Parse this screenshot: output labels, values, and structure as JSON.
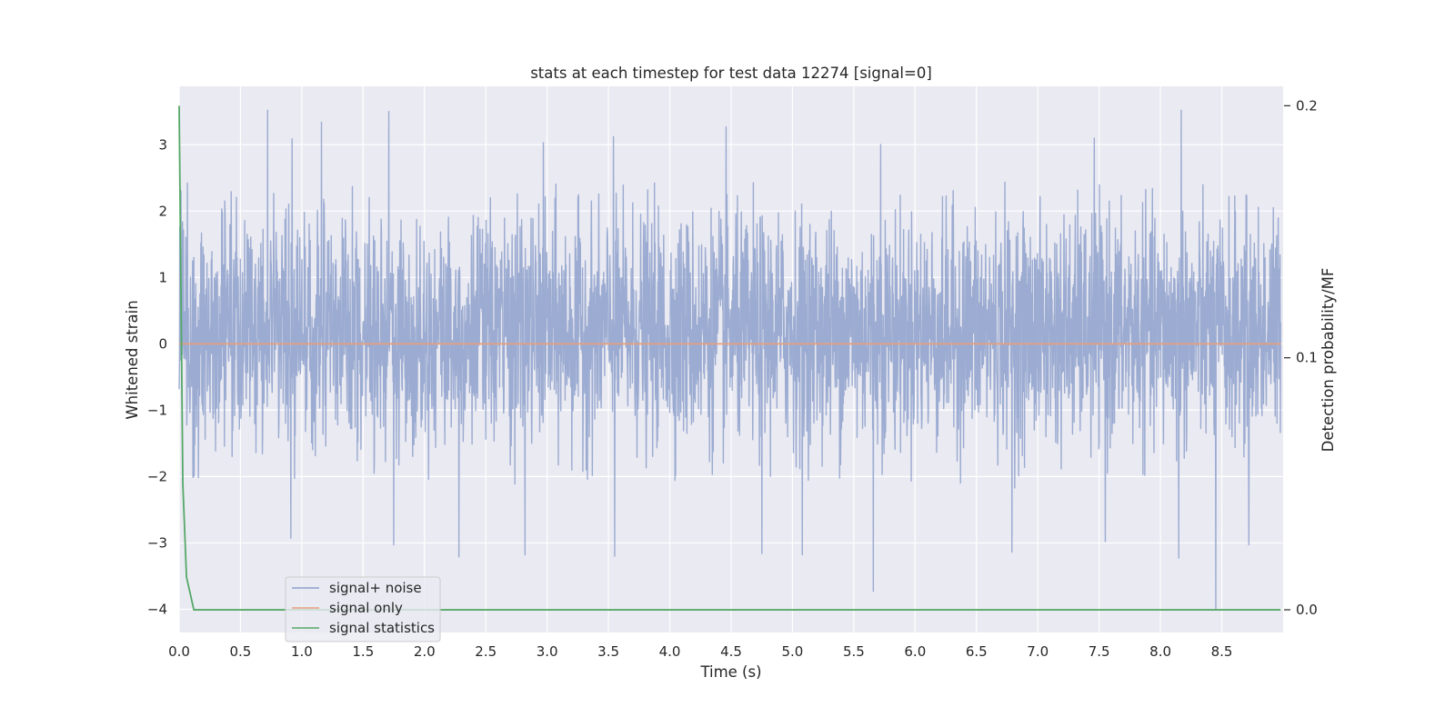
{
  "chart_data": {
    "type": "line",
    "title": "stats at each timestep for test data 12274 [signal=0]",
    "xlabel": "Time (s)",
    "ylabel": "Whitened strain",
    "y2label": "Detection probability/MF",
    "xlim": [
      0.0,
      9.0
    ],
    "ylim": [
      -4.35,
      3.88
    ],
    "y2lim": [
      -0.009,
      0.2077
    ],
    "x_ticks": [
      0.0,
      0.5,
      1.0,
      1.5,
      2.0,
      2.5,
      3.0,
      3.5,
      4.0,
      4.5,
      5.0,
      5.5,
      6.0,
      6.5,
      7.0,
      7.5,
      8.0,
      8.5
    ],
    "x_tick_labels": [
      "0.0",
      "0.5",
      "1.0",
      "1.5",
      "2.0",
      "2.5",
      "3.0",
      "3.5",
      "4.0",
      "4.5",
      "5.0",
      "5.5",
      "6.0",
      "6.5",
      "7.0",
      "7.5",
      "8.0",
      "8.5"
    ],
    "y_ticks": [
      3,
      2,
      1,
      0,
      -1,
      -2,
      -3,
      -4
    ],
    "y_tick_labels": [
      "3",
      "2",
      "1",
      "0",
      "−1",
      "−2",
      "−3",
      "−4"
    ],
    "y2_ticks": [
      0.2,
      0.1,
      0.0
    ],
    "y2_tick_labels": [
      "0.2",
      "0.1",
      "0.0"
    ],
    "grid": true,
    "legend_position": "lower-left",
    "noise_series": {
      "name": "signal+ noise",
      "color": "#8da0cb",
      "axis": "left",
      "x_range": [
        0.0,
        8.98
      ],
      "sample_count": 3600,
      "typical_band": [
        -1.8,
        2.2
      ],
      "peaks": [
        {
          "x": 0.72,
          "y": 3.52
        },
        {
          "x": 0.92,
          "y": 3.09
        },
        {
          "x": 1.16,
          "y": 3.34
        },
        {
          "x": 1.71,
          "y": 3.5
        },
        {
          "x": 2.97,
          "y": 3.03
        },
        {
          "x": 3.54,
          "y": 3.12
        },
        {
          "x": 4.46,
          "y": 3.27
        },
        {
          "x": 5.72,
          "y": 3.0
        },
        {
          "x": 7.46,
          "y": 3.1
        },
        {
          "x": 8.17,
          "y": 3.52
        }
      ],
      "troughs": [
        {
          "x": 0.91,
          "y": -2.93
        },
        {
          "x": 1.75,
          "y": -3.03
        },
        {
          "x": 2.28,
          "y": -3.21
        },
        {
          "x": 2.82,
          "y": -3.18
        },
        {
          "x": 3.55,
          "y": -3.2
        },
        {
          "x": 4.75,
          "y": -3.16
        },
        {
          "x": 5.08,
          "y": -3.18
        },
        {
          "x": 5.66,
          "y": -3.73
        },
        {
          "x": 6.79,
          "y": -3.14
        },
        {
          "x": 7.55,
          "y": -2.98
        },
        {
          "x": 8.15,
          "y": -3.23
        },
        {
          "x": 8.45,
          "y": -4.0
        },
        {
          "x": 8.72,
          "y": -3.03
        }
      ]
    },
    "series": [
      {
        "name": "signal only",
        "color": "#e5a07d",
        "axis": "left",
        "x": [
          0.0,
          8.98
        ],
        "y": [
          0.0,
          0.0
        ]
      },
      {
        "name": "signal statistics",
        "color": "#55a868",
        "axis": "right",
        "x": [
          0.0,
          0.01,
          0.03,
          0.06,
          0.12,
          8.98
        ],
        "y": [
          0.2,
          0.15,
          0.05,
          0.013,
          0.0,
          0.0
        ]
      }
    ]
  }
}
